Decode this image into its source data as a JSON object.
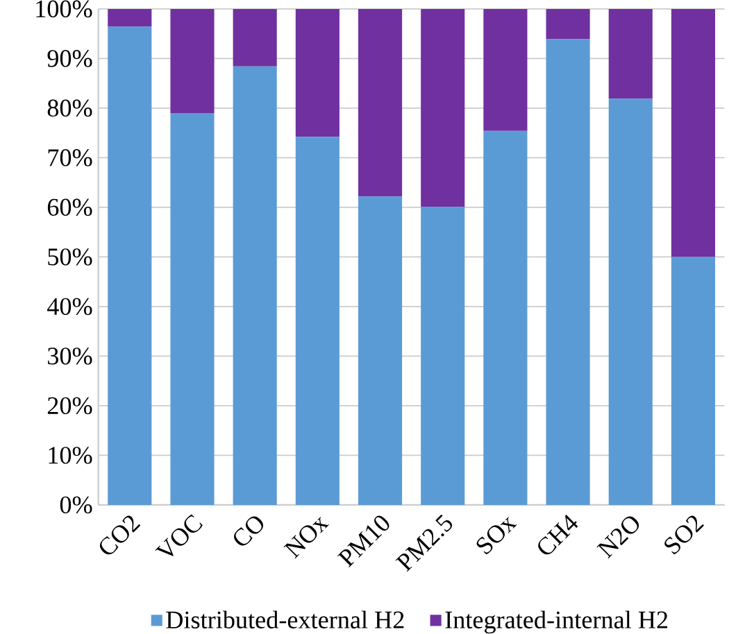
{
  "chart_data": {
    "type": "bar",
    "stacked": true,
    "categories": [
      "CO2",
      "VOC",
      "CO",
      "NOx",
      "PM10",
      "PM2.5",
      "SOx",
      "CH4",
      "N2O",
      "SO2"
    ],
    "series": [
      {
        "name": "Distributed-external H2",
        "color": "#5b9bd5",
        "values": [
          96.4,
          79.0,
          88.4,
          74.2,
          62.2,
          60.1,
          75.4,
          93.9,
          81.9,
          50.0
        ]
      },
      {
        "name": "Integrated-internal H2",
        "color": "#7030a0",
        "values": [
          3.6,
          21.0,
          11.6,
          25.8,
          37.8,
          39.9,
          24.6,
          6.1,
          18.1,
          50.0
        ]
      }
    ],
    "ylim": [
      0,
      100
    ],
    "yticks": [
      {
        "value": 0,
        "label": "0%"
      },
      {
        "value": 10,
        "label": "10%"
      },
      {
        "value": 20,
        "label": "20%"
      },
      {
        "value": 30,
        "label": "30%"
      },
      {
        "value": 40,
        "label": "40%"
      },
      {
        "value": 50,
        "label": "50%"
      },
      {
        "value": 60,
        "label": "60%"
      },
      {
        "value": 70,
        "label": "70%"
      },
      {
        "value": 80,
        "label": "80%"
      },
      {
        "value": 90,
        "label": "90%"
      },
      {
        "value": 100,
        "label": "100%"
      }
    ],
    "grid": "y",
    "legend": "bottom"
  }
}
